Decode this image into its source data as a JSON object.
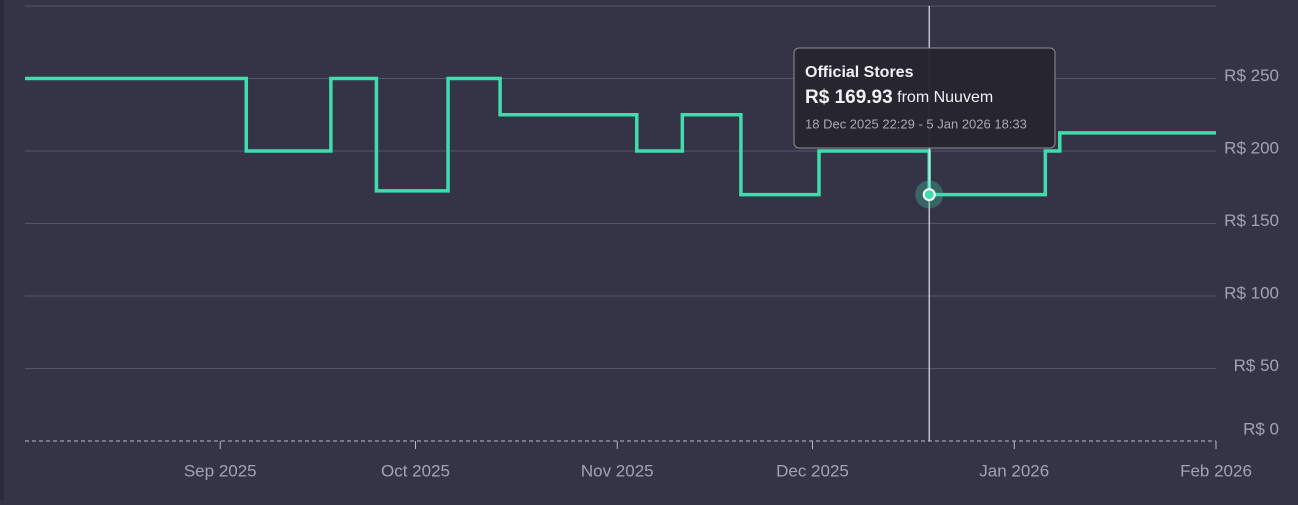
{
  "chart_data": {
    "type": "step",
    "series": [
      {
        "name": "Official Stores",
        "color": "#3fdcae",
        "x": [
          "2025-08-02",
          "2025-09-05",
          "2025-09-18",
          "2025-09-25",
          "2025-10-06",
          "2025-10-14",
          "2025-11-04",
          "2025-11-11",
          "2025-11-20",
          "2025-12-02",
          "2025-12-18T22:29",
          "2026-01-05T18:33",
          "2026-01-08"
        ],
        "values": [
          249.99,
          199.99,
          249.99,
          172.49,
          249.99,
          224.99,
          199.99,
          224.99,
          169.93,
          199.99,
          169.93,
          199.99,
          212.49
        ]
      }
    ],
    "xlim": [
      "2025-08-02",
      "2026-02-01"
    ],
    "xticks": [
      {
        "value": "2025-09-01",
        "label": "Sep 2025"
      },
      {
        "value": "2025-10-01",
        "label": "Oct 2025"
      },
      {
        "value": "2025-11-01",
        "label": "Nov 2025"
      },
      {
        "value": "2025-12-01",
        "label": "Dec 2025"
      },
      {
        "value": "2026-01-01",
        "label": "Jan 2026"
      },
      {
        "value": "2026-02-01",
        "label": "Feb 2026"
      }
    ],
    "ylim": [
      0,
      300
    ],
    "yticks": [
      {
        "value": 0,
        "label": "R$ 0"
      },
      {
        "value": 50,
        "label": "R$ 50"
      },
      {
        "value": 100,
        "label": "R$ 100"
      },
      {
        "value": 150,
        "label": "R$ 150"
      },
      {
        "value": 200,
        "label": "R$ 200"
      },
      {
        "value": 250,
        "label": "R$ 250"
      }
    ],
    "grid": true,
    "tooltip": {
      "point": 10,
      "title": "Official Stores",
      "price_label": "R$ 169.93",
      "source": "from Nuuvem",
      "period": "18 Dec 2025 22:29 - 5 Jan 2026 18:33"
    }
  }
}
